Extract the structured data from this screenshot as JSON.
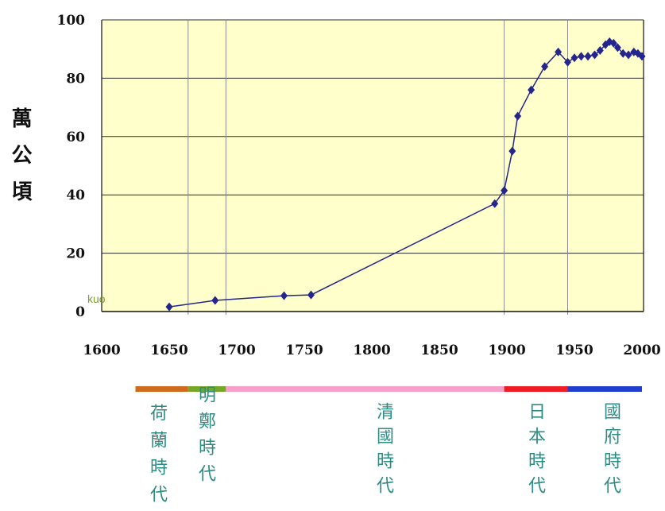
{
  "chart_data": {
    "type": "line",
    "title": "",
    "xlabel": "",
    "ylabel": "萬公頃",
    "xlim": [
      1600,
      2000
    ],
    "ylim": [
      0,
      100
    ],
    "xticks": [
      1600,
      1650,
      1700,
      1750,
      1800,
      1850,
      1900,
      1950,
      2000
    ],
    "yticks": [
      0,
      20,
      40,
      60,
      80,
      100
    ],
    "grid": "horizontal",
    "legend": "none",
    "background": "#ffffcc",
    "series": [
      {
        "color": "#25258f",
        "marker": "diamond",
        "x": [
          1650,
          1684,
          1735,
          1755,
          1891,
          1898,
          1904,
          1908,
          1918,
          1928,
          1938,
          1945,
          1950,
          1955,
          1960,
          1965,
          1969,
          1973,
          1976,
          1979,
          1982,
          1986,
          1990,
          1994,
          1997,
          2000
        ],
        "y": [
          1.6,
          3.8,
          5.4,
          5.7,
          37,
          41.5,
          55,
          67,
          76,
          84,
          89,
          85.5,
          87,
          87.5,
          87.5,
          88,
          89.5,
          91.5,
          92.5,
          92,
          90.5,
          88.5,
          88,
          89,
          88.5,
          87.5
        ]
      }
    ]
  },
  "annotation": "kuo",
  "periods": [
    {
      "label": "荷蘭時代",
      "start": 1625,
      "end": 1664,
      "color": "#cf6b1f"
    },
    {
      "label": "明鄭時代",
      "start": 1664,
      "end": 1692,
      "color": "#74a826"
    },
    {
      "label": "清國時代",
      "start": 1692,
      "end": 1898,
      "color": "#f59fc9"
    },
    {
      "label": "日本時代",
      "start": 1898,
      "end": 1945,
      "color": "#ee1d24"
    },
    {
      "label": "國府時代",
      "start": 1945,
      "end": 2000,
      "color": "#1f3fcc"
    }
  ],
  "colors": {
    "grid": "#2a2a2a",
    "axis": "#111111",
    "period_line": "#8a8a8a",
    "label_text": "#2b8c83"
  }
}
